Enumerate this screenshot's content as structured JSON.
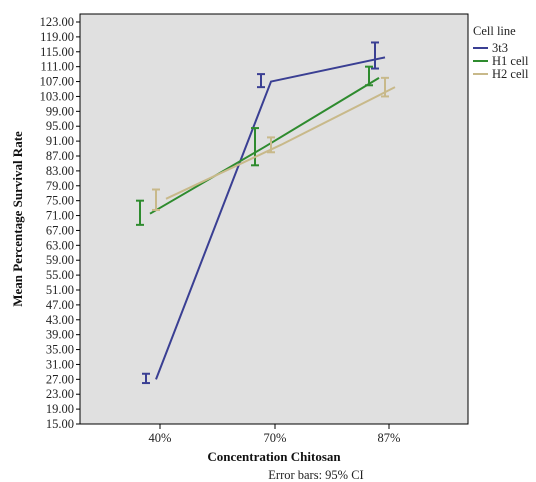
{
  "chart_data": {
    "type": "line",
    "xlabel": "Concentration Chitosan",
    "ylabel": "Mean Percentage Survival Rate",
    "categories": [
      "40%",
      "70%",
      "87%"
    ],
    "ylim": [
      15.0,
      125.0
    ],
    "yticks": [
      "15.00",
      "19.00",
      "23.00",
      "27.00",
      "31.00",
      "35.00",
      "39.00",
      "43.00",
      "47.00",
      "51.00",
      "55.00",
      "59.00",
      "63.00",
      "67.00",
      "71.00",
      "75.00",
      "79.00",
      "83.00",
      "87.00",
      "91.00",
      "95.00",
      "99.00",
      "103.00",
      "107.00",
      "111.00",
      "115.00",
      "119.00",
      "123.00"
    ],
    "legend_title": "Cell line",
    "legend_position": "right",
    "note": "Error bars: 95% CI",
    "plot_background": "#e0e0e0",
    "series": [
      {
        "name": "3t3",
        "color": "#3a3f93",
        "values": [
          27.0,
          107.0,
          113.5
        ],
        "ci_low": [
          26.0,
          105.5,
          110.5
        ],
        "ci_high": [
          28.5,
          109.0,
          117.5
        ]
      },
      {
        "name": "H1 cell",
        "color": "#2e8b2e",
        "values": [
          71.5,
          89.5,
          108.0
        ],
        "ci_low": [
          68.5,
          84.5,
          106.0
        ],
        "ci_high": [
          75.0,
          94.5,
          111.0
        ]
      },
      {
        "name": "H2 cell",
        "color": "#c8b98a",
        "values": [
          75.5,
          90.0,
          105.5
        ],
        "ci_low": [
          72.5,
          88.0,
          103.0
        ],
        "ci_high": [
          78.0,
          92.0,
          108.0
        ]
      }
    ]
  }
}
